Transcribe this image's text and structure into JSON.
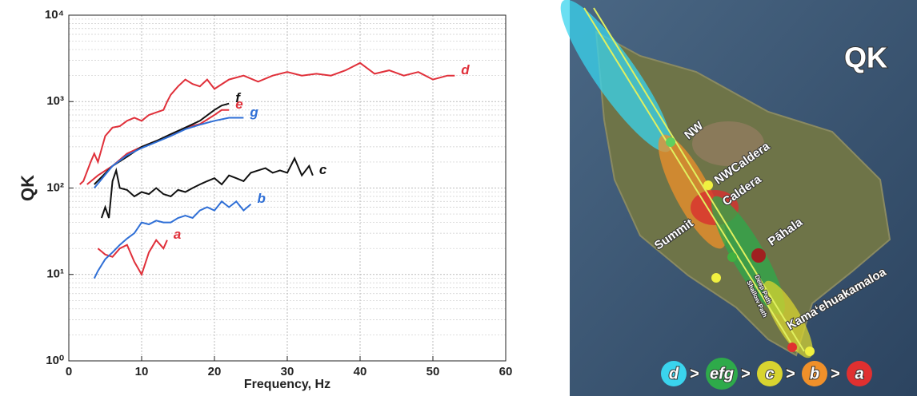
{
  "chart_data": {
    "type": "line",
    "x_label": "Frequency, Hz",
    "y_label": "QK",
    "xlim": [
      0,
      60
    ],
    "xticks": [
      0,
      10,
      20,
      30,
      40,
      50,
      60
    ],
    "ylim": [
      1,
      10000
    ],
    "log_y": true,
    "grid": true,
    "yticks": [
      {
        "value": 1,
        "label": "10⁰"
      },
      {
        "value": 10,
        "label": "10¹"
      },
      {
        "value": 100,
        "label": "10²"
      },
      {
        "value": 1000,
        "label": "10³"
      },
      {
        "value": 10000,
        "label": "10⁴"
      }
    ],
    "series": [
      {
        "name": "a",
        "color": "#e0303a",
        "x": [
          4,
          5,
          6,
          7,
          8,
          9,
          10,
          11,
          12,
          13,
          13.5
        ],
        "values": [
          20,
          17,
          16,
          20,
          22,
          14,
          10,
          18,
          25,
          20,
          25
        ]
      },
      {
        "name": "b",
        "color": "#2f6fd6",
        "x": [
          3.5,
          4,
          5,
          6,
          7,
          8,
          9,
          10,
          11,
          12,
          13,
          14,
          15,
          16,
          17,
          18,
          19,
          20,
          21,
          22,
          23,
          24,
          25
        ],
        "values": [
          9,
          11,
          15,
          18,
          22,
          26,
          30,
          40,
          38,
          42,
          40,
          40,
          45,
          48,
          45,
          55,
          60,
          55,
          70,
          60,
          70,
          55,
          65
        ]
      },
      {
        "name": "c",
        "color": "#111111",
        "x": [
          4.5,
          5,
          5.5,
          6,
          6.5,
          7,
          8,
          9,
          10,
          11,
          12,
          13,
          14,
          15,
          16,
          17,
          18,
          19,
          20,
          21,
          22,
          23,
          24,
          25,
          26,
          27,
          28,
          29,
          30,
          31,
          32,
          33,
          33.5
        ],
        "values": [
          45,
          60,
          45,
          120,
          160,
          100,
          95,
          80,
          90,
          85,
          100,
          85,
          80,
          95,
          90,
          100,
          110,
          120,
          130,
          110,
          140,
          130,
          120,
          150,
          160,
          170,
          150,
          160,
          150,
          220,
          140,
          180,
          140
        ]
      },
      {
        "name": "d",
        "color": "#e0303a",
        "x": [
          1.5,
          2,
          3,
          3.5,
          4,
          5,
          6,
          7,
          8,
          9,
          10,
          11,
          12,
          13,
          13.5,
          14,
          15,
          16,
          17,
          18,
          19,
          20,
          22,
          24,
          26,
          28,
          30,
          32,
          34,
          36,
          38,
          40,
          42,
          44,
          46,
          48,
          50,
          52,
          53
        ],
        "values": [
          110,
          120,
          200,
          250,
          200,
          400,
          500,
          520,
          600,
          650,
          600,
          700,
          750,
          800,
          1000,
          1200,
          1500,
          1800,
          1600,
          1500,
          1800,
          1400,
          1800,
          2000,
          1700,
          2000,
          2200,
          2000,
          2100,
          2000,
          2300,
          2800,
          2100,
          2300,
          2000,
          2200,
          1800,
          2000,
          2000
        ]
      },
      {
        "name": "e",
        "color": "#e0303a",
        "x": [
          2.5,
          4,
          6,
          8,
          10,
          12,
          14,
          16,
          18,
          20,
          21,
          22
        ],
        "values": [
          110,
          140,
          180,
          250,
          300,
          350,
          400,
          500,
          550,
          700,
          800,
          800
        ]
      },
      {
        "name": "f",
        "color": "#111111",
        "x": [
          3.5,
          6,
          8,
          10,
          12,
          14,
          16,
          18,
          20,
          21,
          22
        ],
        "values": [
          110,
          180,
          230,
          300,
          350,
          420,
          500,
          600,
          800,
          900,
          950
        ]
      },
      {
        "name": "g",
        "color": "#2f6fd6",
        "x": [
          3.5,
          6,
          8,
          10,
          12,
          14,
          16,
          18,
          20,
          22,
          24
        ],
        "values": [
          100,
          180,
          240,
          290,
          340,
          400,
          480,
          540,
          600,
          650,
          650
        ]
      }
    ]
  },
  "map": {
    "title": "QK",
    "labels": [
      "NW",
      "NWCaldera",
      "Caldera",
      "Summit",
      "Pāhala",
      "Kamaʻehuakamaloa",
      "Deep Path",
      "Shallow Path"
    ],
    "legend": [
      "d",
      "efg",
      "c",
      "b",
      "a"
    ],
    "separator": ">"
  }
}
